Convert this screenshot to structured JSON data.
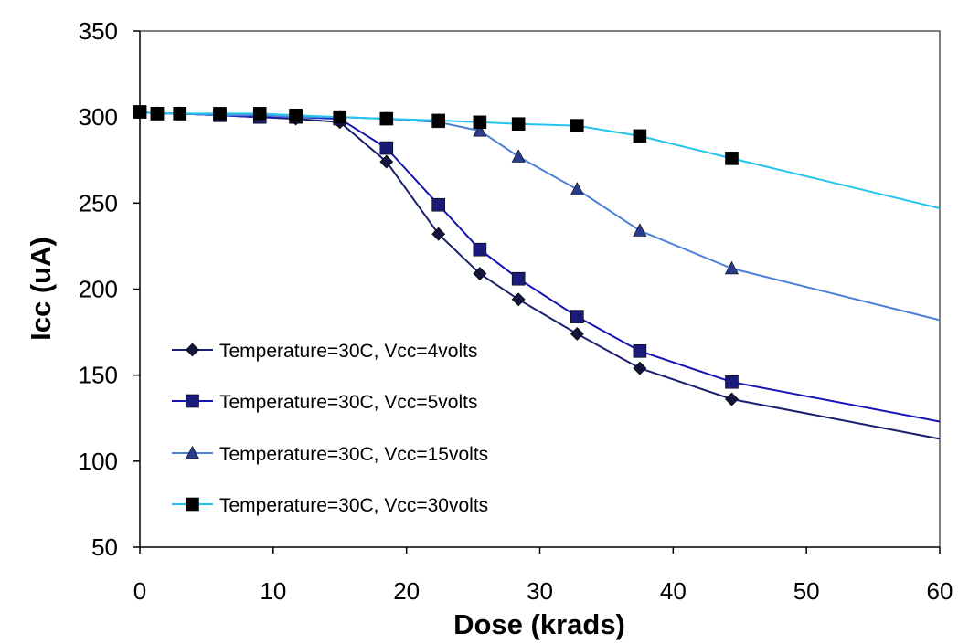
{
  "chart_data": {
    "type": "line",
    "title": "",
    "xlabel": "Dose (krads)",
    "ylabel": "Icc (uA)",
    "xlim": [
      0,
      60
    ],
    "ylim": [
      50,
      350
    ],
    "xticks": [
      0,
      10,
      20,
      30,
      40,
      50,
      60
    ],
    "yticks": [
      50,
      100,
      150,
      200,
      250,
      300,
      350
    ],
    "xtick_labels": [
      "0",
      "10",
      "20",
      "30",
      "40",
      "50",
      "60"
    ],
    "ytick_labels": [
      "50",
      "100",
      "150",
      "200",
      "250",
      "300",
      "350"
    ],
    "grid": false,
    "legend_position": "lower-left",
    "series": [
      {
        "name": "Temperature=30C, Vcc=4volts",
        "color": "#1a1f6e",
        "marker_color": "#14143c",
        "marker": "diamond",
        "x": [
          0,
          1.3,
          3,
          6,
          9,
          11.7,
          15,
          18.5,
          22.4,
          25.5,
          28.4,
          32.8,
          37.5,
          44.4,
          60
        ],
        "y": [
          303,
          302,
          302,
          301,
          300,
          299,
          297,
          274,
          232,
          209,
          194,
          174,
          154,
          136,
          113
        ],
        "markers": [
          true,
          true,
          true,
          true,
          true,
          true,
          true,
          true,
          true,
          true,
          true,
          true,
          true,
          true,
          false
        ]
      },
      {
        "name": "Temperature=30C, Vcc=5volts",
        "color": "#1414b4",
        "marker_color": "#1a1a78",
        "marker": "square",
        "x": [
          0,
          1.3,
          3,
          6,
          9,
          11.7,
          15,
          18.5,
          22.4,
          25.5,
          28.4,
          32.8,
          37.5,
          44.4,
          60
        ],
        "y": [
          303,
          302,
          302,
          301,
          300,
          300,
          299,
          282,
          249,
          223,
          206,
          184,
          164,
          146,
          123
        ],
        "markers": [
          true,
          true,
          true,
          true,
          true,
          true,
          true,
          true,
          true,
          true,
          true,
          true,
          true,
          true,
          false
        ]
      },
      {
        "name": "Temperature=30C, Vcc=15volts",
        "color": "#4a80d8",
        "marker_color": "#2a3a8c",
        "marker": "triangle",
        "x": [
          0,
          1.3,
          3,
          6,
          9,
          11.7,
          15,
          18.5,
          22.4,
          25.5,
          28.4,
          32.8,
          37.5,
          44.4,
          60
        ],
        "y": [
          303,
          302,
          302,
          301,
          301,
          300,
          300,
          299,
          297,
          292,
          277,
          258,
          234,
          212,
          182
        ],
        "markers": [
          true,
          true,
          true,
          true,
          true,
          true,
          true,
          true,
          true,
          true,
          true,
          true,
          true,
          true,
          false
        ]
      },
      {
        "name": "Temperature=30C, Vcc=30volts",
        "color": "#22c4ee",
        "marker_color": "#000000",
        "marker": "square",
        "x": [
          0,
          1.3,
          3,
          6,
          9,
          11.7,
          15,
          18.5,
          22.4,
          25.5,
          28.4,
          32.8,
          37.5,
          44.4,
          60
        ],
        "y": [
          303,
          302,
          302,
          302,
          302,
          301,
          300,
          299,
          298,
          297,
          296,
          295,
          289,
          276,
          247
        ],
        "markers": [
          true,
          true,
          true,
          true,
          true,
          true,
          true,
          true,
          true,
          true,
          true,
          true,
          true,
          true,
          false
        ]
      }
    ]
  }
}
